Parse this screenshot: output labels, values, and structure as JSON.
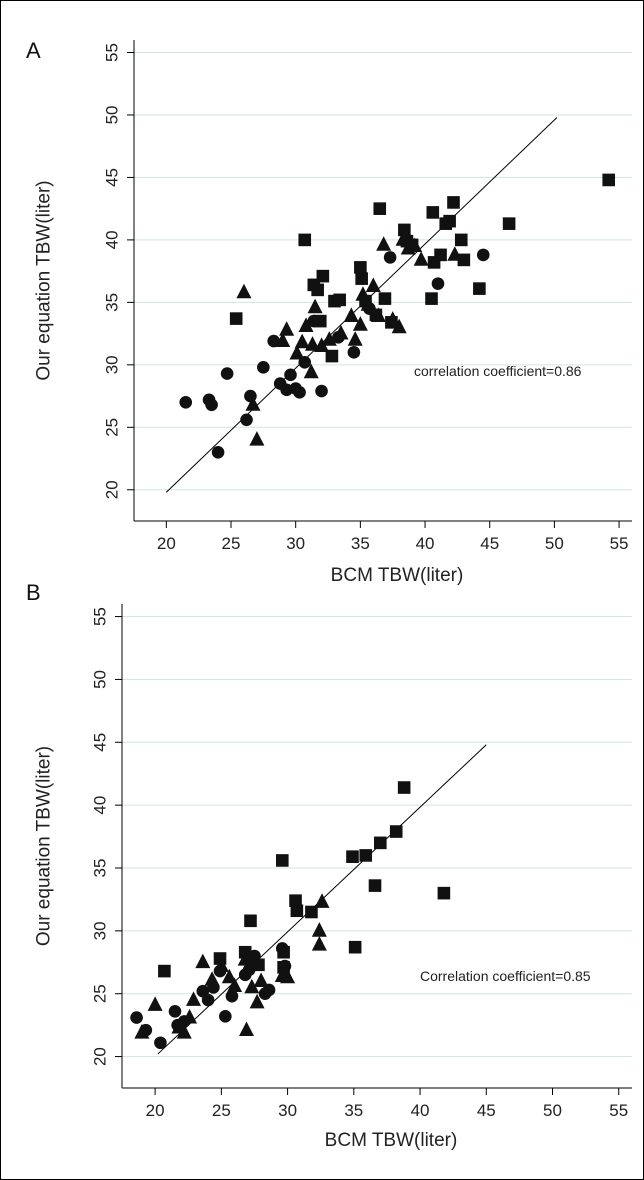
{
  "chart_data": [
    {
      "type": "scatter",
      "panel_label": "A",
      "xlabel": "BCM TBW(liter)",
      "ylabel": "Our equation TBW(liter)",
      "xlim": [
        17.5,
        56
      ],
      "ylim": [
        17.5,
        56
      ],
      "xticks": [
        20,
        25,
        30,
        35,
        40,
        45,
        50,
        55
      ],
      "yticks": [
        20,
        25,
        30,
        35,
        40,
        45,
        50,
        55
      ],
      "grid": "horizontal",
      "annotation": "correlation coefficient=0.86",
      "fit_line": {
        "x": [
          20,
          50.2
        ],
        "y": [
          19.8,
          49.8
        ]
      },
      "series": [
        {
          "marker": "circle",
          "points": [
            [
              21.5,
              27.0
            ],
            [
              23.3,
              27.2
            ],
            [
              23.5,
              26.8
            ],
            [
              24.0,
              23.0
            ],
            [
              24.7,
              29.3
            ],
            [
              26.2,
              25.6
            ],
            [
              26.5,
              27.5
            ],
            [
              27.5,
              29.8
            ],
            [
              28.3,
              31.9
            ],
            [
              28.8,
              28.5
            ],
            [
              29.3,
              28.0
            ],
            [
              29.6,
              29.2
            ],
            [
              30.0,
              28.1
            ],
            [
              30.3,
              27.8
            ],
            [
              30.7,
              30.2
            ],
            [
              31.4,
              33.5
            ],
            [
              32.0,
              27.9
            ],
            [
              33.3,
              32.2
            ],
            [
              34.5,
              31.0
            ],
            [
              35.7,
              34.5
            ],
            [
              37.3,
              38.6
            ],
            [
              41.0,
              36.5
            ],
            [
              44.5,
              38.8
            ]
          ]
        },
        {
          "marker": "triangle",
          "points": [
            [
              26.0,
              35.8
            ],
            [
              26.7,
              26.8
            ],
            [
              27.0,
              24.0
            ],
            [
              29.0,
              31.9
            ],
            [
              29.3,
              32.8
            ],
            [
              30.1,
              30.9
            ],
            [
              30.5,
              31.8
            ],
            [
              30.8,
              33.1
            ],
            [
              31.2,
              29.4
            ],
            [
              31.3,
              31.6
            ],
            [
              31.5,
              34.6
            ],
            [
              32.0,
              31.5
            ],
            [
              32.6,
              32.0
            ],
            [
              33.5,
              32.5
            ],
            [
              34.3,
              33.9
            ],
            [
              34.6,
              32.0
            ],
            [
              35.0,
              33.2
            ],
            [
              35.2,
              35.6
            ],
            [
              35.6,
              34.8
            ],
            [
              36.0,
              36.3
            ],
            [
              36.4,
              33.9
            ],
            [
              36.8,
              39.6
            ],
            [
              37.5,
              33.6
            ],
            [
              38.0,
              33.0
            ],
            [
              38.3,
              40.0
            ],
            [
              38.7,
              39.3
            ],
            [
              39.2,
              39.5
            ],
            [
              39.7,
              38.4
            ],
            [
              42.3,
              38.8
            ]
          ]
        },
        {
          "marker": "square",
          "points": [
            [
              25.4,
              33.7
            ],
            [
              30.7,
              40.0
            ],
            [
              31.4,
              36.4
            ],
            [
              31.7,
              36.0
            ],
            [
              31.9,
              33.5
            ],
            [
              32.1,
              37.1
            ],
            [
              32.8,
              30.7
            ],
            [
              33.0,
              35.1
            ],
            [
              33.4,
              35.2
            ],
            [
              35.0,
              37.8
            ],
            [
              35.1,
              36.9
            ],
            [
              35.4,
              35.1
            ],
            [
              36.2,
              34.0
            ],
            [
              36.5,
              42.5
            ],
            [
              36.9,
              35.3
            ],
            [
              37.4,
              33.4
            ],
            [
              38.4,
              40.8
            ],
            [
              38.6,
              39.9
            ],
            [
              39.0,
              39.6
            ],
            [
              40.5,
              35.3
            ],
            [
              40.6,
              42.2
            ],
            [
              40.7,
              38.2
            ],
            [
              41.2,
              38.8
            ],
            [
              41.6,
              41.3
            ],
            [
              41.9,
              41.5
            ],
            [
              42.2,
              43.0
            ],
            [
              42.8,
              40.0
            ],
            [
              43.0,
              38.4
            ],
            [
              44.2,
              36.1
            ],
            [
              46.5,
              41.3
            ],
            [
              54.2,
              44.8
            ]
          ]
        }
      ]
    },
    {
      "type": "scatter",
      "panel_label": "B",
      "xlabel": "BCM TBW(liter)",
      "ylabel": "Our equation TBW(liter)",
      "xlim": [
        17.5,
        56
      ],
      "ylim": [
        17.5,
        56
      ],
      "xticks": [
        20,
        25,
        30,
        35,
        40,
        45,
        50,
        55
      ],
      "yticks": [
        20,
        25,
        30,
        35,
        40,
        45,
        50,
        55
      ],
      "grid": "horizontal",
      "annotation": "Correlation coefficient=0.85",
      "fit_line": {
        "x": [
          20.2,
          45.0
        ],
        "y": [
          20.2,
          44.8
        ]
      },
      "series": [
        {
          "marker": "circle",
          "points": [
            [
              18.6,
              23.1
            ],
            [
              19.3,
              22.1
            ],
            [
              20.4,
              21.1
            ],
            [
              21.5,
              23.6
            ],
            [
              21.7,
              22.5
            ],
            [
              22.2,
              22.8
            ],
            [
              23.6,
              25.2
            ],
            [
              24.0,
              24.5
            ],
            [
              24.4,
              25.5
            ],
            [
              24.9,
              26.8
            ],
            [
              25.3,
              23.2
            ],
            [
              25.8,
              24.8
            ],
            [
              26.8,
              26.5
            ],
            [
              27.1,
              26.9
            ],
            [
              27.3,
              27.4
            ],
            [
              27.5,
              28.0
            ],
            [
              28.3,
              25.0
            ],
            [
              28.6,
              25.3
            ],
            [
              29.6,
              28.6
            ],
            [
              29.8,
              27.2
            ]
          ]
        },
        {
          "marker": "triangle",
          "points": [
            [
              19.0,
              21.9
            ],
            [
              20.0,
              24.1
            ],
            [
              21.8,
              22.3
            ],
            [
              22.2,
              21.9
            ],
            [
              22.6,
              23.1
            ],
            [
              22.9,
              24.5
            ],
            [
              23.6,
              27.5
            ],
            [
              24.3,
              26.1
            ],
            [
              25.0,
              27.2
            ],
            [
              25.6,
              26.3
            ],
            [
              26.0,
              25.6
            ],
            [
              26.8,
              27.7
            ],
            [
              26.9,
              22.1
            ],
            [
              27.3,
              25.5
            ],
            [
              27.7,
              24.3
            ],
            [
              28.0,
              26.0
            ],
            [
              29.6,
              26.4
            ],
            [
              30.0,
              26.3
            ],
            [
              32.4,
              28.9
            ],
            [
              32.4,
              30.0
            ],
            [
              32.6,
              32.3
            ]
          ]
        },
        {
          "marker": "square",
          "points": [
            [
              20.7,
              26.8
            ],
            [
              24.9,
              27.8
            ],
            [
              26.8,
              28.3
            ],
            [
              27.2,
              30.8
            ],
            [
              27.8,
              27.3
            ],
            [
              29.6,
              35.6
            ],
            [
              29.7,
              28.3
            ],
            [
              29.7,
              27.1
            ],
            [
              30.6,
              32.4
            ],
            [
              30.7,
              31.6
            ],
            [
              31.8,
              31.5
            ],
            [
              35.1,
              28.7
            ],
            [
              34.9,
              35.9
            ],
            [
              35.9,
              36.0
            ],
            [
              36.6,
              33.6
            ],
            [
              37.0,
              37.0
            ],
            [
              38.2,
              37.9
            ],
            [
              38.8,
              41.4
            ],
            [
              41.8,
              33.0
            ]
          ]
        }
      ]
    }
  ]
}
